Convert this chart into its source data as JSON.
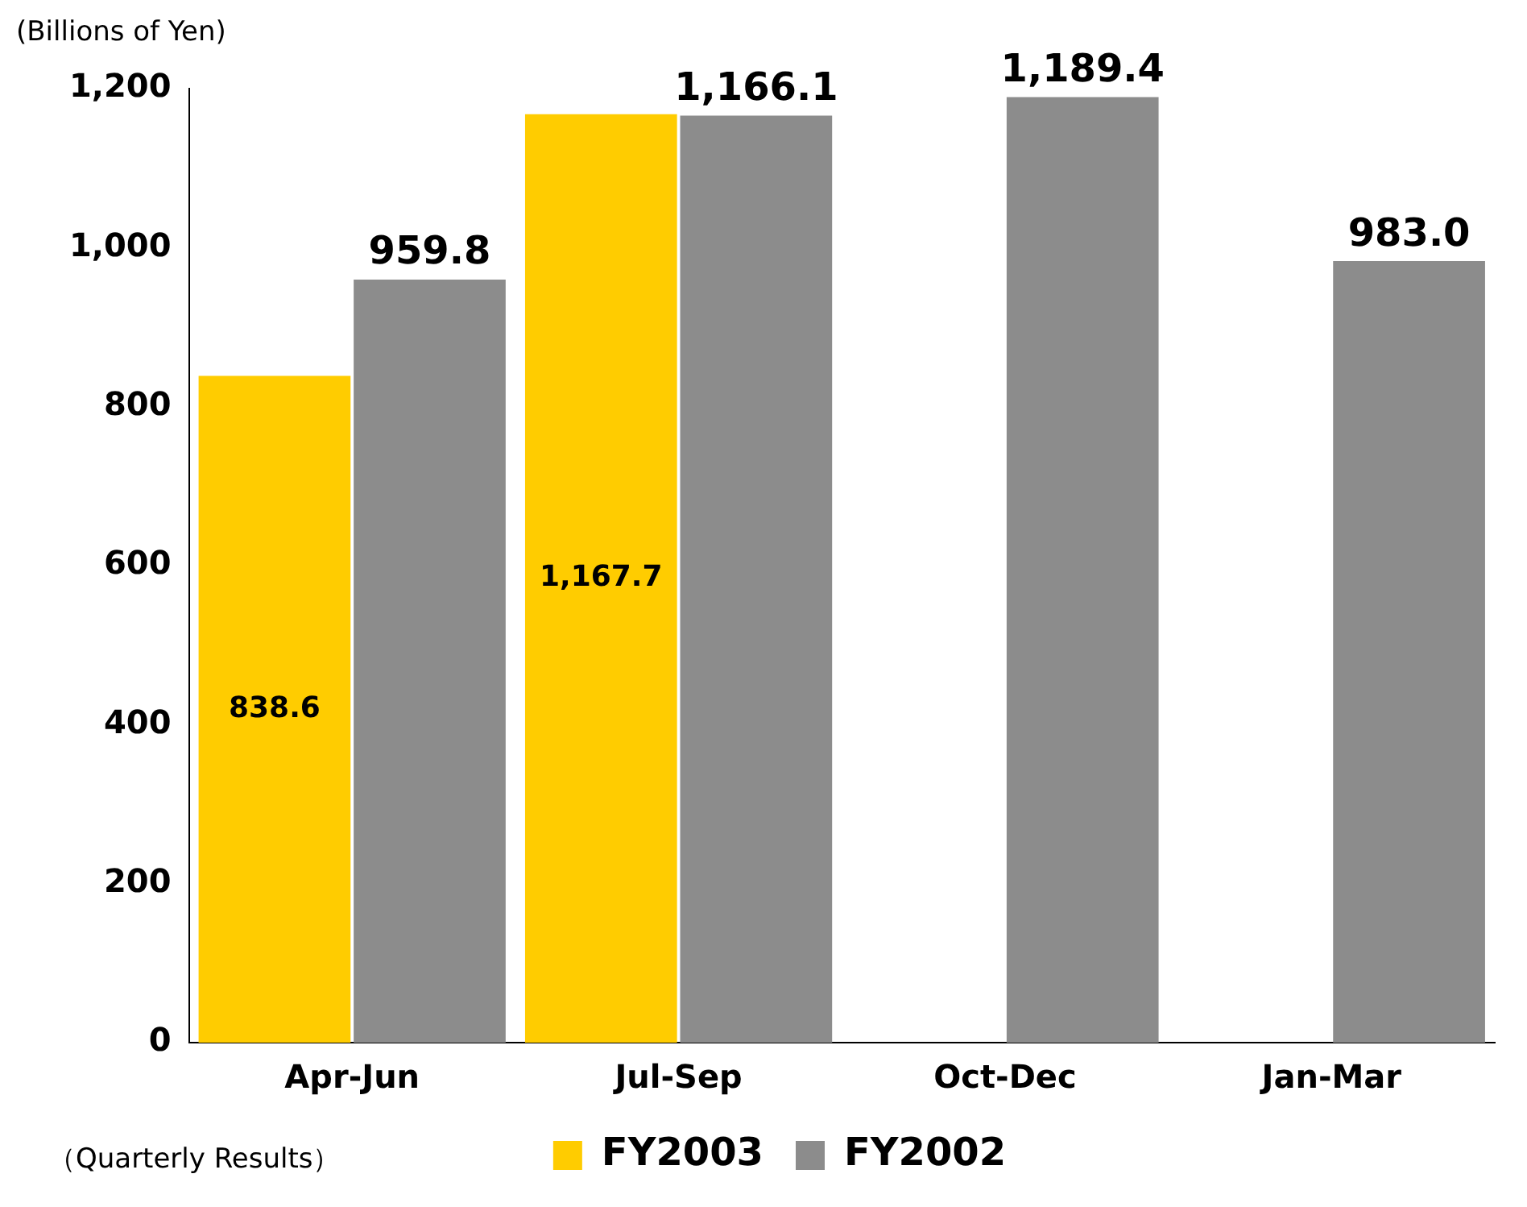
{
  "chart_data": {
    "type": "bar",
    "ylabel": "(Billions of Yen)",
    "categories": [
      "Apr-Jun",
      "Jul-Sep",
      "Oct-Dec",
      "Jan-Mar"
    ],
    "series": [
      {
        "name": "FY2003",
        "color": "#ffcc00",
        "values": [
          838.6,
          1167.7,
          null,
          null
        ],
        "value_labels": [
          "838.6",
          "1,167.7",
          null,
          null
        ]
      },
      {
        "name": "FY2002",
        "color": "#8c8c8c",
        "values": [
          959.8,
          1166.1,
          1189.4,
          983.0
        ],
        "value_labels": [
          "959.8",
          "1,166.1",
          "1,189.4",
          "983.0"
        ]
      }
    ],
    "ylim": [
      0,
      1200
    ],
    "yticks": [
      {
        "value": 0,
        "label": "0"
      },
      {
        "value": 200,
        "label": "200"
      },
      {
        "value": 400,
        "label": "400"
      },
      {
        "value": 600,
        "label": "600"
      },
      {
        "value": 800,
        "label": "800"
      },
      {
        "value": 1000,
        "label": "1,000"
      },
      {
        "value": 1200,
        "label": "1,200"
      }
    ],
    "grid": false,
    "legend": "bottom",
    "annotations": [
      "（Quarterly Results）"
    ]
  }
}
